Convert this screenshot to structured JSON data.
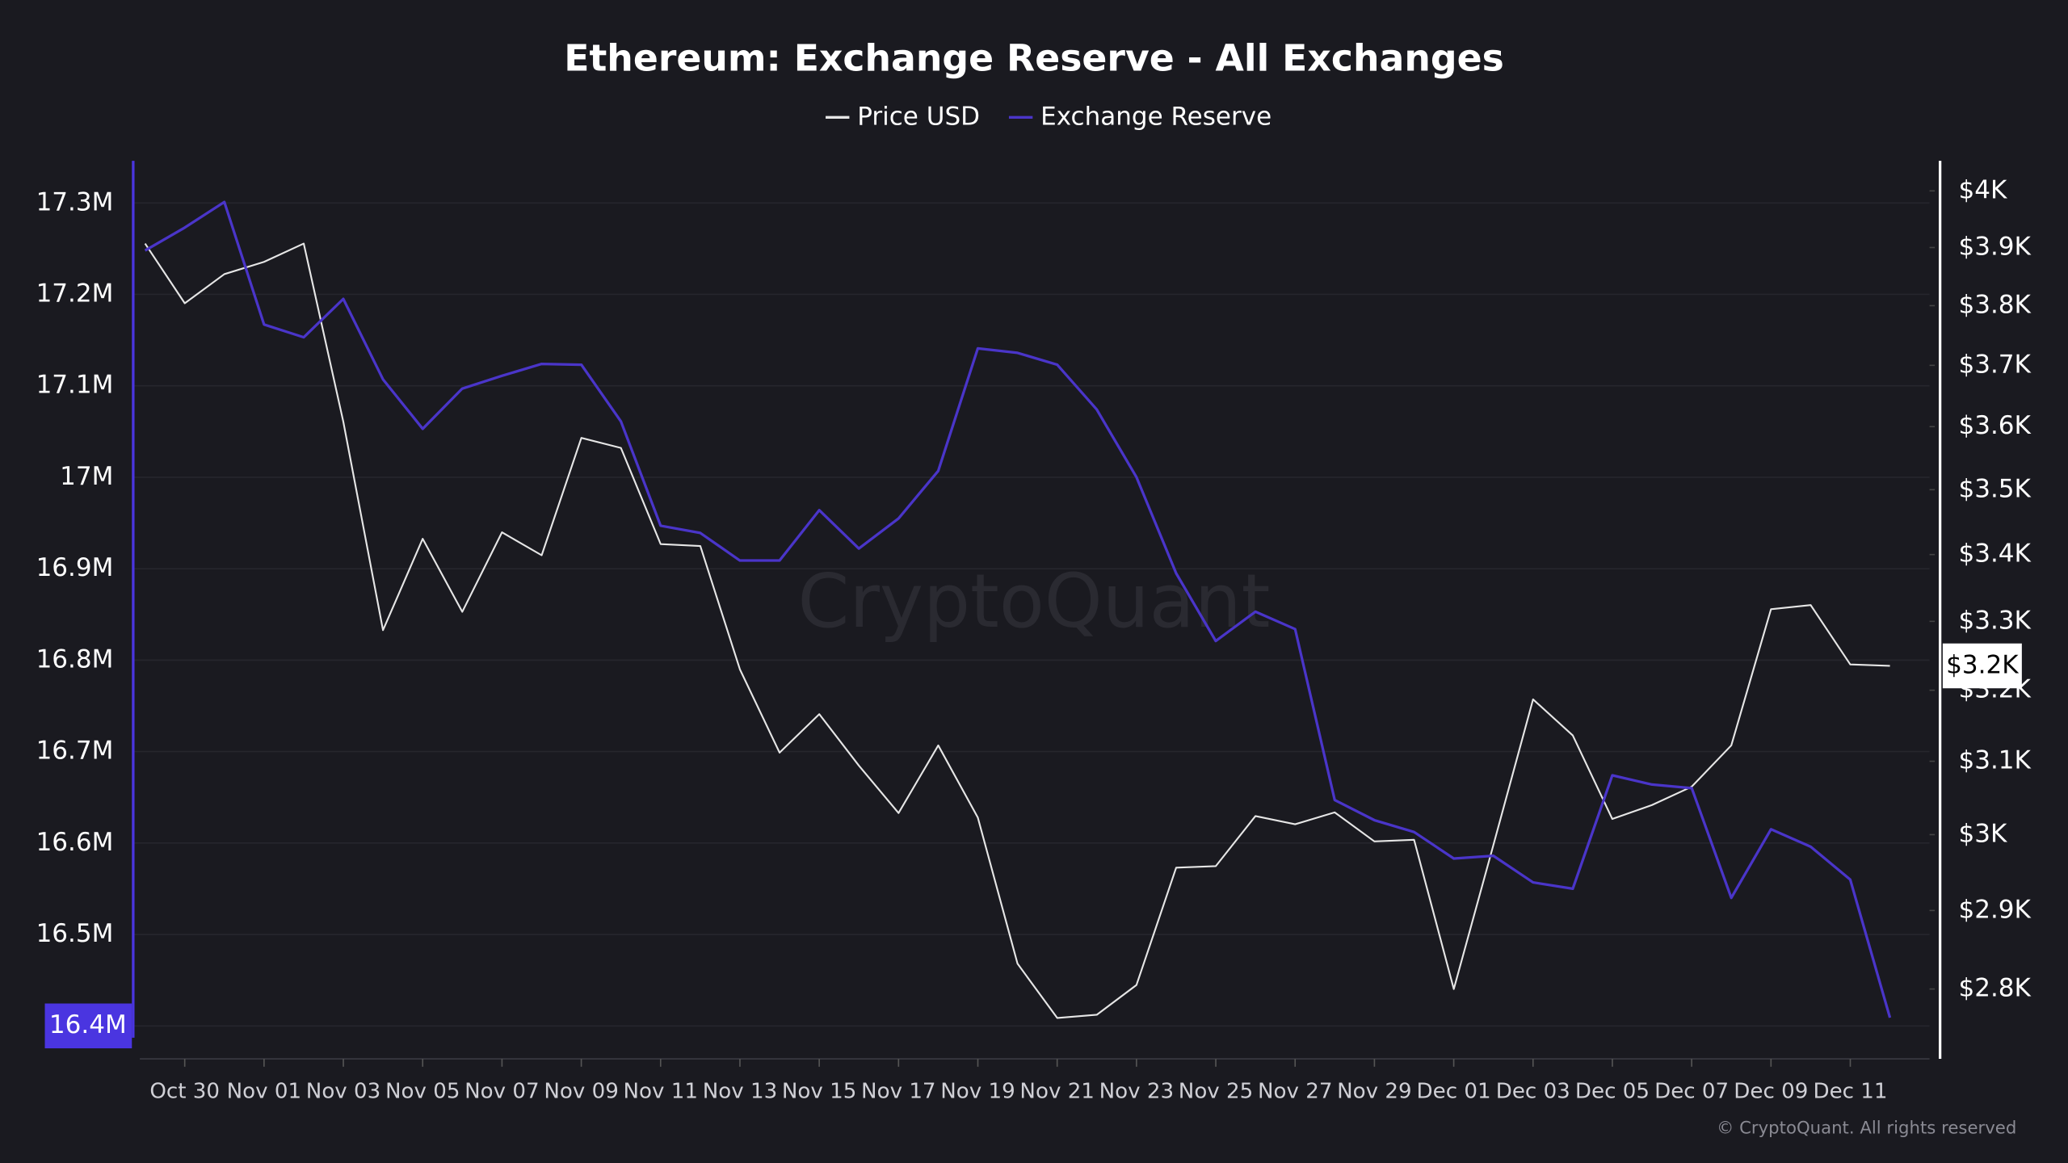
{
  "chart_data": {
    "type": "line",
    "title": "Ethereum: Exchange Reserve - All Exchanges",
    "watermark": "CryptoQuant",
    "footer": "© CryptoQuant. All rights reserved",
    "price_marker_label": "$3.2K",
    "categories": [
      null,
      "Oct 30",
      null,
      "Nov 01",
      null,
      "Nov 03",
      null,
      "Nov 05",
      null,
      "Nov 07",
      null,
      "Nov 09",
      null,
      "Nov 11",
      null,
      "Nov 13",
      null,
      "Nov 15",
      null,
      "Nov 17",
      null,
      "Nov 19",
      null,
      "Nov 21",
      null,
      "Nov 23",
      null,
      "Nov 25",
      null,
      "Nov 27",
      null,
      "Nov 29",
      null,
      "Dec 01",
      null,
      "Dec 03",
      null,
      "Dec 05",
      null,
      "Dec 07",
      null,
      "Dec 09",
      null,
      "Dec 11",
      null
    ],
    "series": [
      {
        "name": "Price USD",
        "color": "#e6e6e6",
        "axis": "y2",
        "values": [
          3907,
          3804,
          3854,
          3875,
          3907,
          3608,
          3287,
          3424,
          3314,
          3434,
          3399,
          3582,
          3566,
          3416,
          3413,
          3230,
          3112,
          3166,
          3094,
          3029,
          3122,
          3023,
          2832,
          2764,
          2768,
          2805,
          2956,
          2958,
          3025,
          3014,
          3030,
          2991,
          2993,
          2800,
          2986,
          3187,
          3136,
          3021,
          3040,
          3065,
          3122,
          3318,
          3324,
          3237,
          3235
        ]
      },
      {
        "name": "Exchange Reserve",
        "color": "#4a35c9",
        "values": [
          17.248,
          17.273,
          17.301,
          17.167,
          17.153,
          17.195,
          17.107,
          17.053,
          17.097,
          17.111,
          17.124,
          17.123,
          17.061,
          16.947,
          16.939,
          16.909,
          16.909,
          16.964,
          16.922,
          16.955,
          17.007,
          17.141,
          17.136,
          17.123,
          17.074,
          17.0,
          16.895,
          16.821,
          16.853,
          16.834,
          16.647,
          16.625,
          16.612,
          16.583,
          16.586,
          16.557,
          16.55,
          16.674,
          16.664,
          16.66,
          16.54,
          16.615,
          16.596,
          16.56,
          16.409
        ]
      }
    ],
    "ylim": [
      16.364,
      17.346
    ],
    "yticks": [
      {
        "value": 16.4,
        "label": "16.4M"
      },
      {
        "value": 16.5,
        "label": "16.5M"
      },
      {
        "value": 16.6,
        "label": "16.6M"
      },
      {
        "value": 16.7,
        "label": "16.7M"
      },
      {
        "value": 16.8,
        "label": "16.8M"
      },
      {
        "value": 16.9,
        "label": "16.9M"
      },
      {
        "value": 17,
        "label": "17M"
      },
      {
        "value": 17.1,
        "label": "17.1M"
      },
      {
        "value": 17.2,
        "label": "17.2M"
      },
      {
        "value": 17.3,
        "label": "17.3M"
      }
    ],
    "y2lim": [
      2714,
      4054
    ],
    "y2_log": true,
    "y2ticks": [
      {
        "value": 2800,
        "label": "$2.8K"
      },
      {
        "value": 2900,
        "label": "$2.9K"
      },
      {
        "value": 3000,
        "label": "$3K"
      },
      {
        "value": 3100,
        "label": "$3.1K"
      },
      {
        "value": 3200,
        "label": "$3.2K"
      },
      {
        "value": 3300,
        "label": "$3.3K"
      },
      {
        "value": 3400,
        "label": "$3.4K"
      },
      {
        "value": 3500,
        "label": "$3.5K"
      },
      {
        "value": 3600,
        "label": "$3.6K"
      },
      {
        "value": 3700,
        "label": "$3.7K"
      },
      {
        "value": 3800,
        "label": "$3.8K"
      },
      {
        "value": 3900,
        "label": "$3.9K"
      },
      {
        "value": 4000,
        "label": "$4K"
      }
    ],
    "grid": true
  }
}
